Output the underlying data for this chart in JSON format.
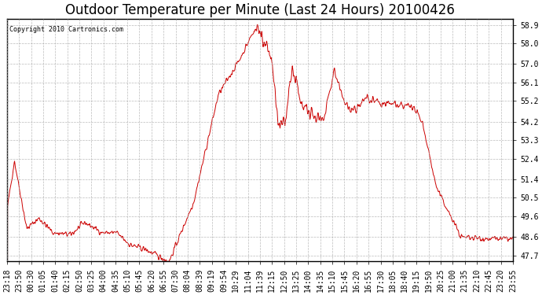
{
  "title": "Outdoor Temperature per Minute (Last 24 Hours) 20100426",
  "copyright_text": "Copyright 2010 Cartronics.com",
  "line_color": "#cc0000",
  "background_color": "#ffffff",
  "grid_color": "#aaaaaa",
  "y_tick_labels": [
    "47.7",
    "48.6",
    "49.6",
    "50.5",
    "51.4",
    "52.4",
    "53.3",
    "54.2",
    "55.2",
    "56.1",
    "57.0",
    "58.0",
    "58.9"
  ],
  "y_tick_values": [
    47.7,
    48.6,
    49.6,
    50.5,
    51.4,
    52.4,
    53.3,
    54.2,
    55.2,
    56.1,
    57.0,
    58.0,
    58.9
  ],
  "ylim": [
    47.4,
    59.2
  ],
  "x_tick_labels": [
    "23:18",
    "23:50",
    "00:30",
    "01:05",
    "01:40",
    "02:15",
    "02:50",
    "03:25",
    "04:00",
    "04:35",
    "05:10",
    "05:45",
    "06:20",
    "06:55",
    "07:30",
    "08:04",
    "08:39",
    "09:19",
    "09:54",
    "10:29",
    "11:04",
    "11:39",
    "12:15",
    "12:50",
    "13:25",
    "14:00",
    "14:35",
    "15:10",
    "15:45",
    "16:20",
    "16:55",
    "17:30",
    "18:05",
    "18:40",
    "19:15",
    "19:50",
    "20:25",
    "21:00",
    "21:35",
    "22:10",
    "22:45",
    "23:20",
    "23:55"
  ],
  "title_fontsize": 12,
  "tick_fontsize": 7,
  "keypoints_x": [
    0,
    20,
    55,
    90,
    130,
    180,
    220,
    270,
    310,
    350,
    390,
    460,
    530,
    600,
    660,
    710,
    730,
    750,
    770,
    790,
    810,
    840,
    870,
    900,
    930,
    960,
    990,
    1020,
    1060,
    1100,
    1150,
    1180,
    1220,
    1290,
    1370,
    1439
  ],
  "keypoints_y": [
    50.0,
    52.3,
    49.0,
    49.5,
    48.8,
    48.7,
    49.3,
    48.8,
    48.8,
    48.2,
    48.0,
    47.4,
    50.3,
    55.5,
    57.2,
    58.9,
    58.0,
    57.5,
    54.0,
    54.2,
    56.8,
    55.0,
    54.2,
    54.3,
    56.8,
    55.0,
    54.8,
    55.3,
    55.1,
    55.0,
    55.0,
    54.2,
    51.0,
    48.6,
    48.5,
    48.5
  ]
}
